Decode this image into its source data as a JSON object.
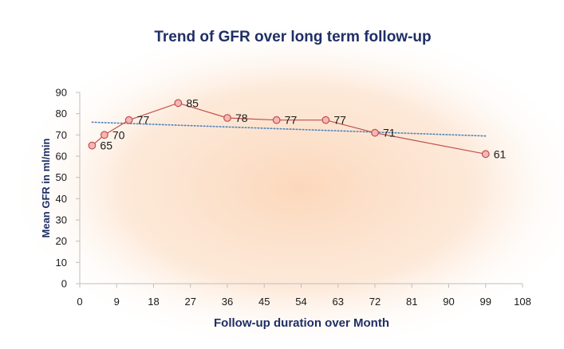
{
  "chart_data": {
    "type": "line",
    "title": "Trend of GFR over long term follow-up",
    "xlabel": "Follow-up duration over Month",
    "ylabel": "Mean GFR in ml/min",
    "xlim": [
      0,
      108
    ],
    "ylim": [
      0,
      90
    ],
    "x_ticks": [
      0,
      9,
      18,
      27,
      36,
      45,
      54,
      63,
      72,
      81,
      90,
      99,
      108
    ],
    "y_ticks": [
      0,
      10,
      20,
      30,
      40,
      50,
      60,
      70,
      80,
      90
    ],
    "series": [
      {
        "x": [
          3,
          6,
          12,
          24,
          36,
          48,
          60,
          72,
          99
        ],
        "y": [
          65,
          70,
          77,
          85,
          78,
          77,
          77,
          71,
          61
        ],
        "data_labels": [
          "65",
          "70",
          "77",
          "85",
          "78",
          "77",
          "77",
          "71",
          "61"
        ],
        "color": "#c0504d",
        "marker_fill": "#f4b6b6"
      }
    ],
    "trendline": {
      "type": "linear",
      "style": "dotted",
      "color": "#4f81bd",
      "x": [
        3,
        99
      ],
      "y": [
        76,
        69.5
      ]
    },
    "grid": false,
    "legend": "none",
    "colors": {
      "title": "#1f2f66",
      "axis_title": "#1f2f66",
      "glow": "#fbd2b0",
      "axis_line": "#bfbfbf"
    }
  }
}
